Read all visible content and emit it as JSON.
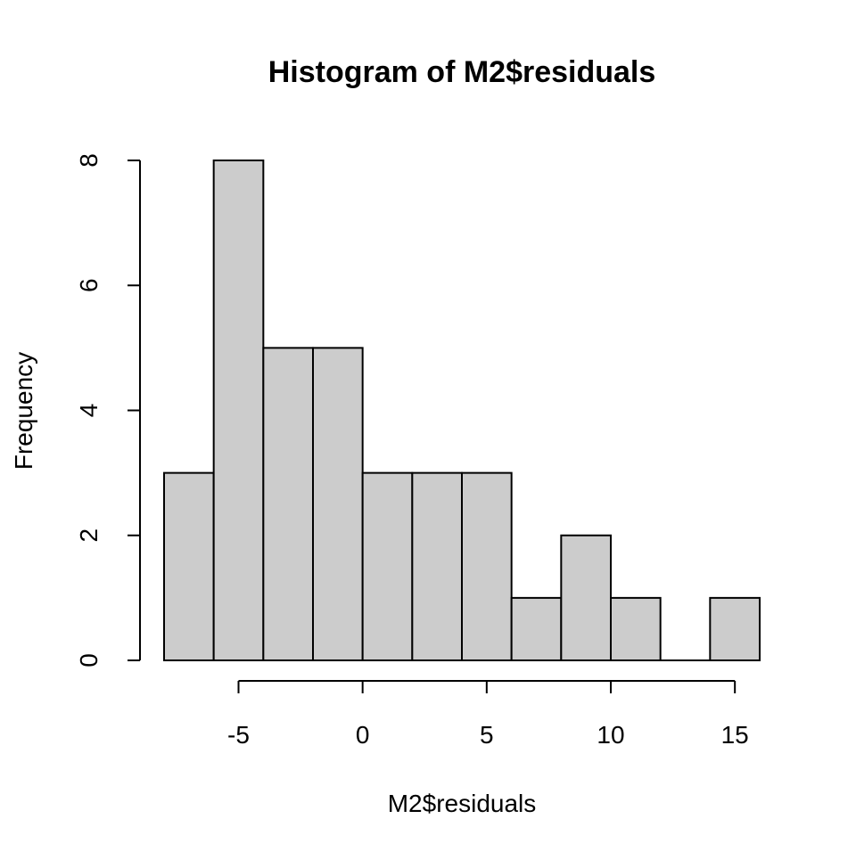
{
  "chart_data": {
    "type": "bar",
    "title": "Histogram of M2$residuals",
    "xlabel": "M2$residuals",
    "ylabel": "Frequency",
    "bins": [
      {
        "start": -8,
        "end": -6,
        "count": 3
      },
      {
        "start": -6,
        "end": -4,
        "count": 8
      },
      {
        "start": -4,
        "end": -2,
        "count": 5
      },
      {
        "start": -2,
        "end": 0,
        "count": 5
      },
      {
        "start": 0,
        "end": 2,
        "count": 3
      },
      {
        "start": 2,
        "end": 4,
        "count": 3
      },
      {
        "start": 4,
        "end": 6,
        "count": 3
      },
      {
        "start": 6,
        "end": 8,
        "count": 1
      },
      {
        "start": 8,
        "end": 10,
        "count": 2
      },
      {
        "start": 10,
        "end": 12,
        "count": 1
      },
      {
        "start": 12,
        "end": 14,
        "count": 0
      },
      {
        "start": 14,
        "end": 16,
        "count": 1
      }
    ],
    "xlim": [
      -8,
      16
    ],
    "ylim": [
      0,
      8
    ],
    "x_ticks": [
      -5,
      0,
      5,
      10,
      15
    ],
    "x_tick_labels": [
      "-5",
      "0",
      "5",
      "10",
      "15"
    ],
    "y_ticks": [
      0,
      2,
      4,
      6,
      8
    ],
    "y_tick_labels": [
      "0",
      "2",
      "4",
      "6",
      "8"
    ],
    "bar_fill": "#cccccc",
    "bar_stroke": "#000000",
    "grid": false,
    "legend": "none"
  }
}
